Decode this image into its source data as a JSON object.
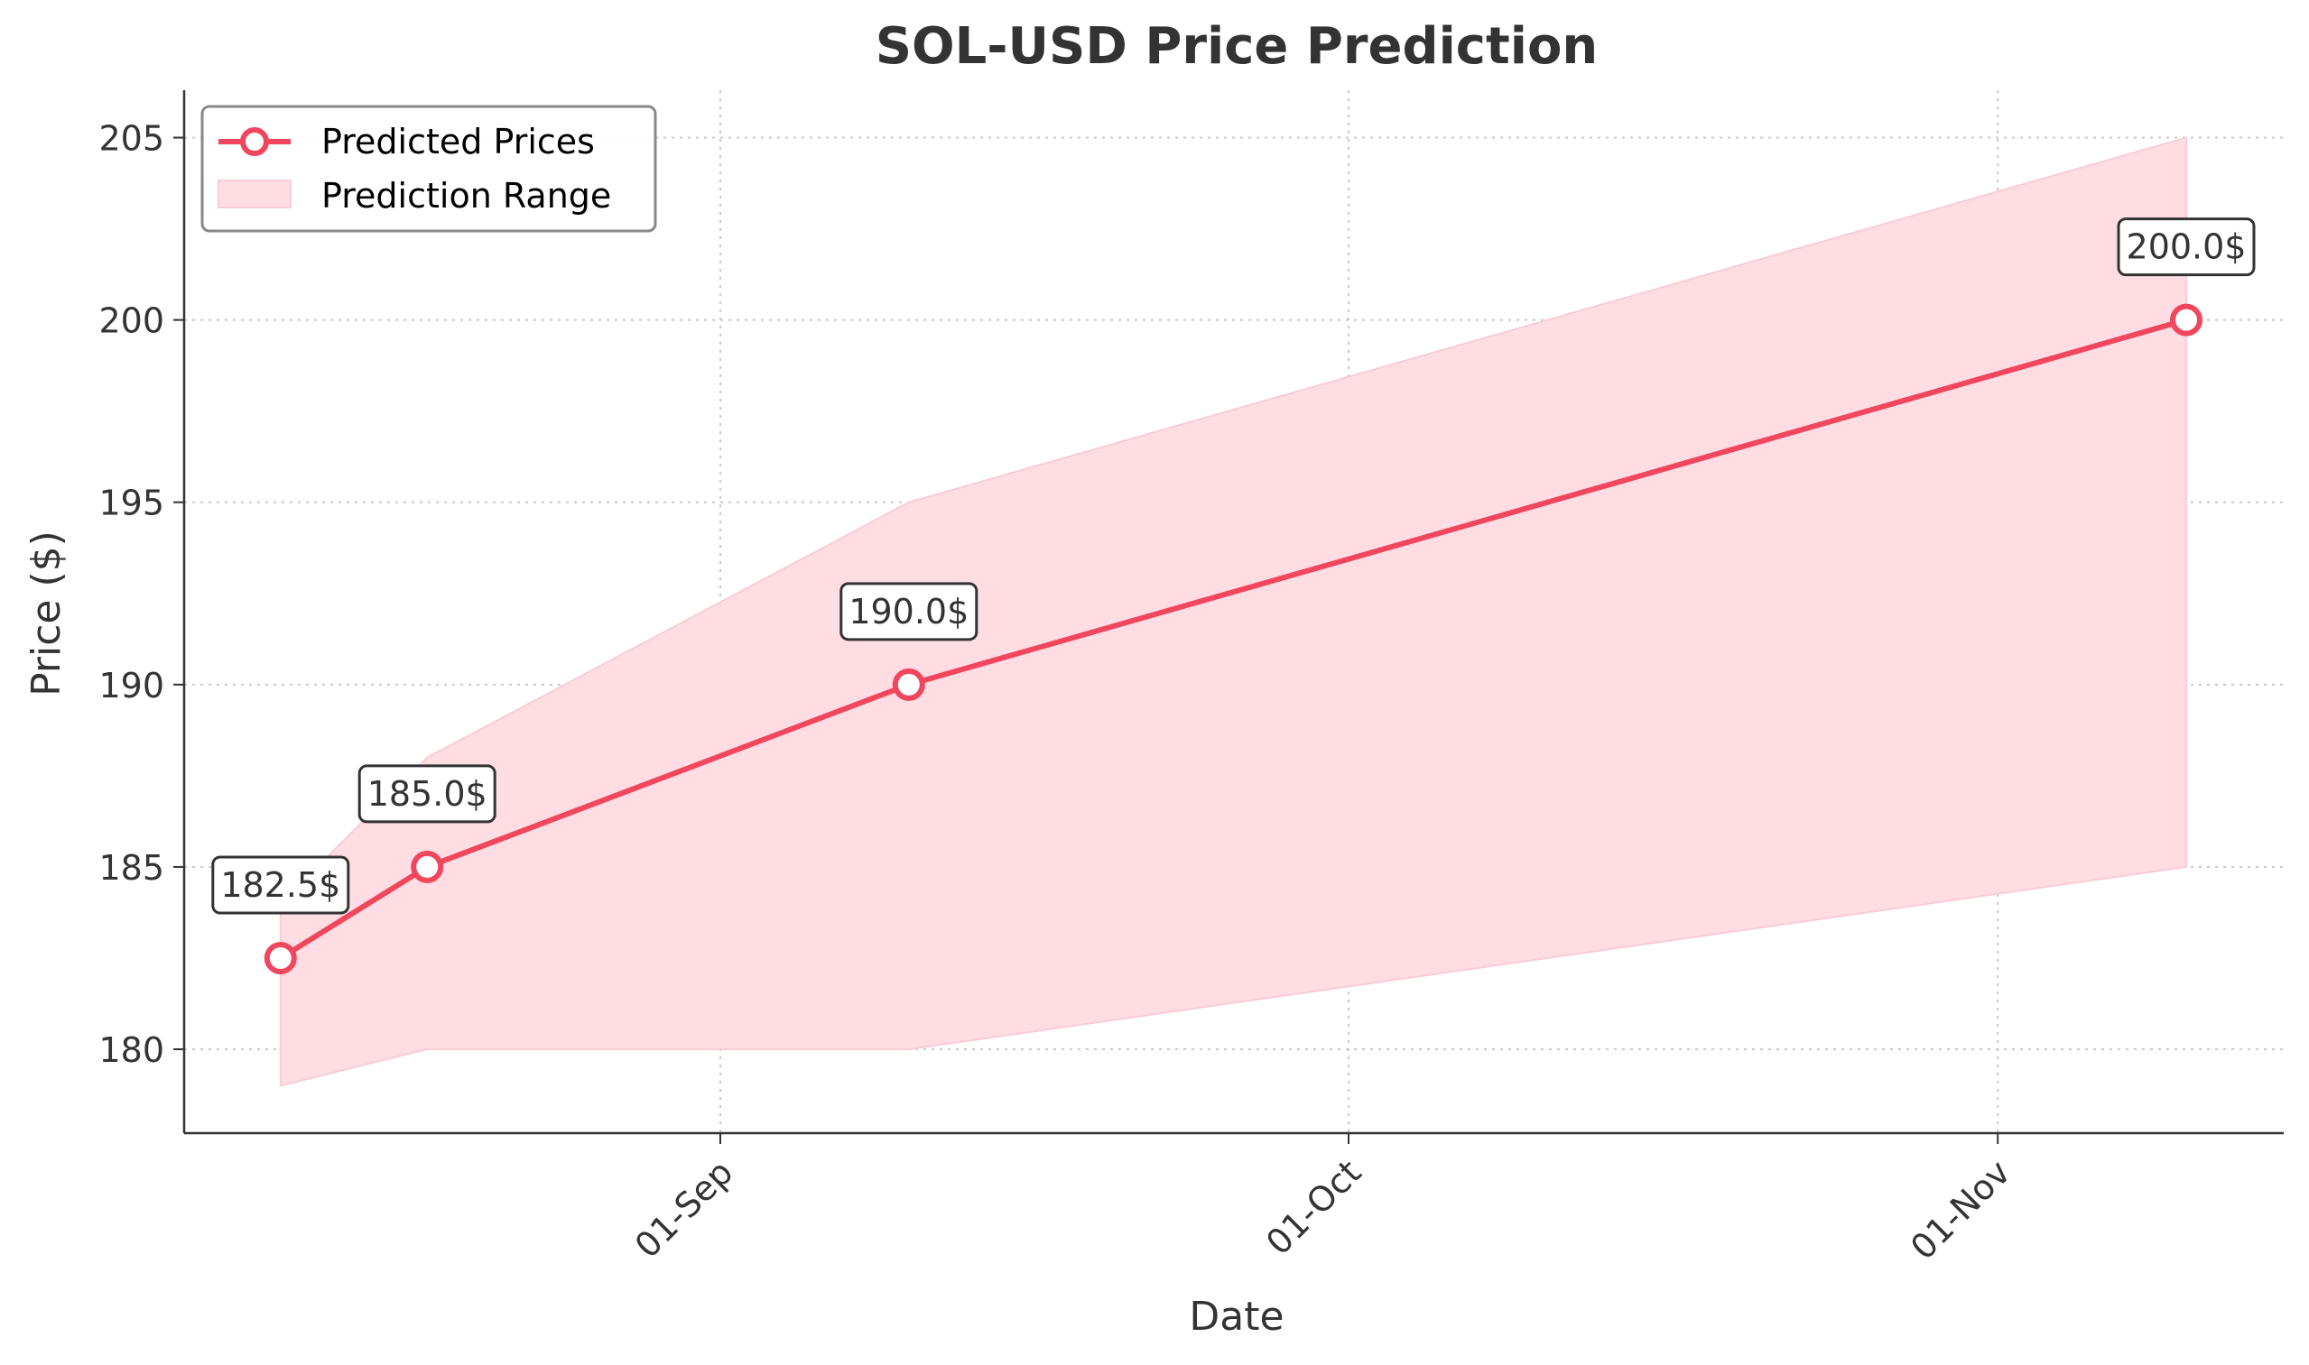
{
  "chart_data": {
    "type": "line",
    "title": "SOL-USD Price Prediction",
    "xlabel": "Date",
    "ylabel": "Price ($)",
    "x_ticks": [
      "01-Sep",
      "01-Oct",
      "01-Nov"
    ],
    "y_ticks": [
      180,
      185,
      190,
      195,
      200,
      205
    ],
    "ylim": [
      177.7,
      206.3
    ],
    "grid": true,
    "legend_position": "top-left",
    "series": [
      {
        "name": "Predicted Prices",
        "color": "#f0465e",
        "x": [
          "11-Aug",
          "18-Aug",
          "10-Sep",
          "10-Nov"
        ],
        "values": [
          182.5,
          185.0,
          190.0,
          200.0
        ],
        "labels": [
          "182.5$",
          "185.0$",
          "190.0$",
          "200.0$"
        ]
      }
    ],
    "range": {
      "name": "Prediction Range",
      "color": "#ffdde3",
      "x": [
        "11-Aug",
        "18-Aug",
        "10-Sep",
        "10-Nov"
      ],
      "lower": [
        179.0,
        180.0,
        180.0,
        185.0
      ],
      "upper": [
        184.0,
        188.0,
        195.0,
        205.0
      ]
    }
  }
}
